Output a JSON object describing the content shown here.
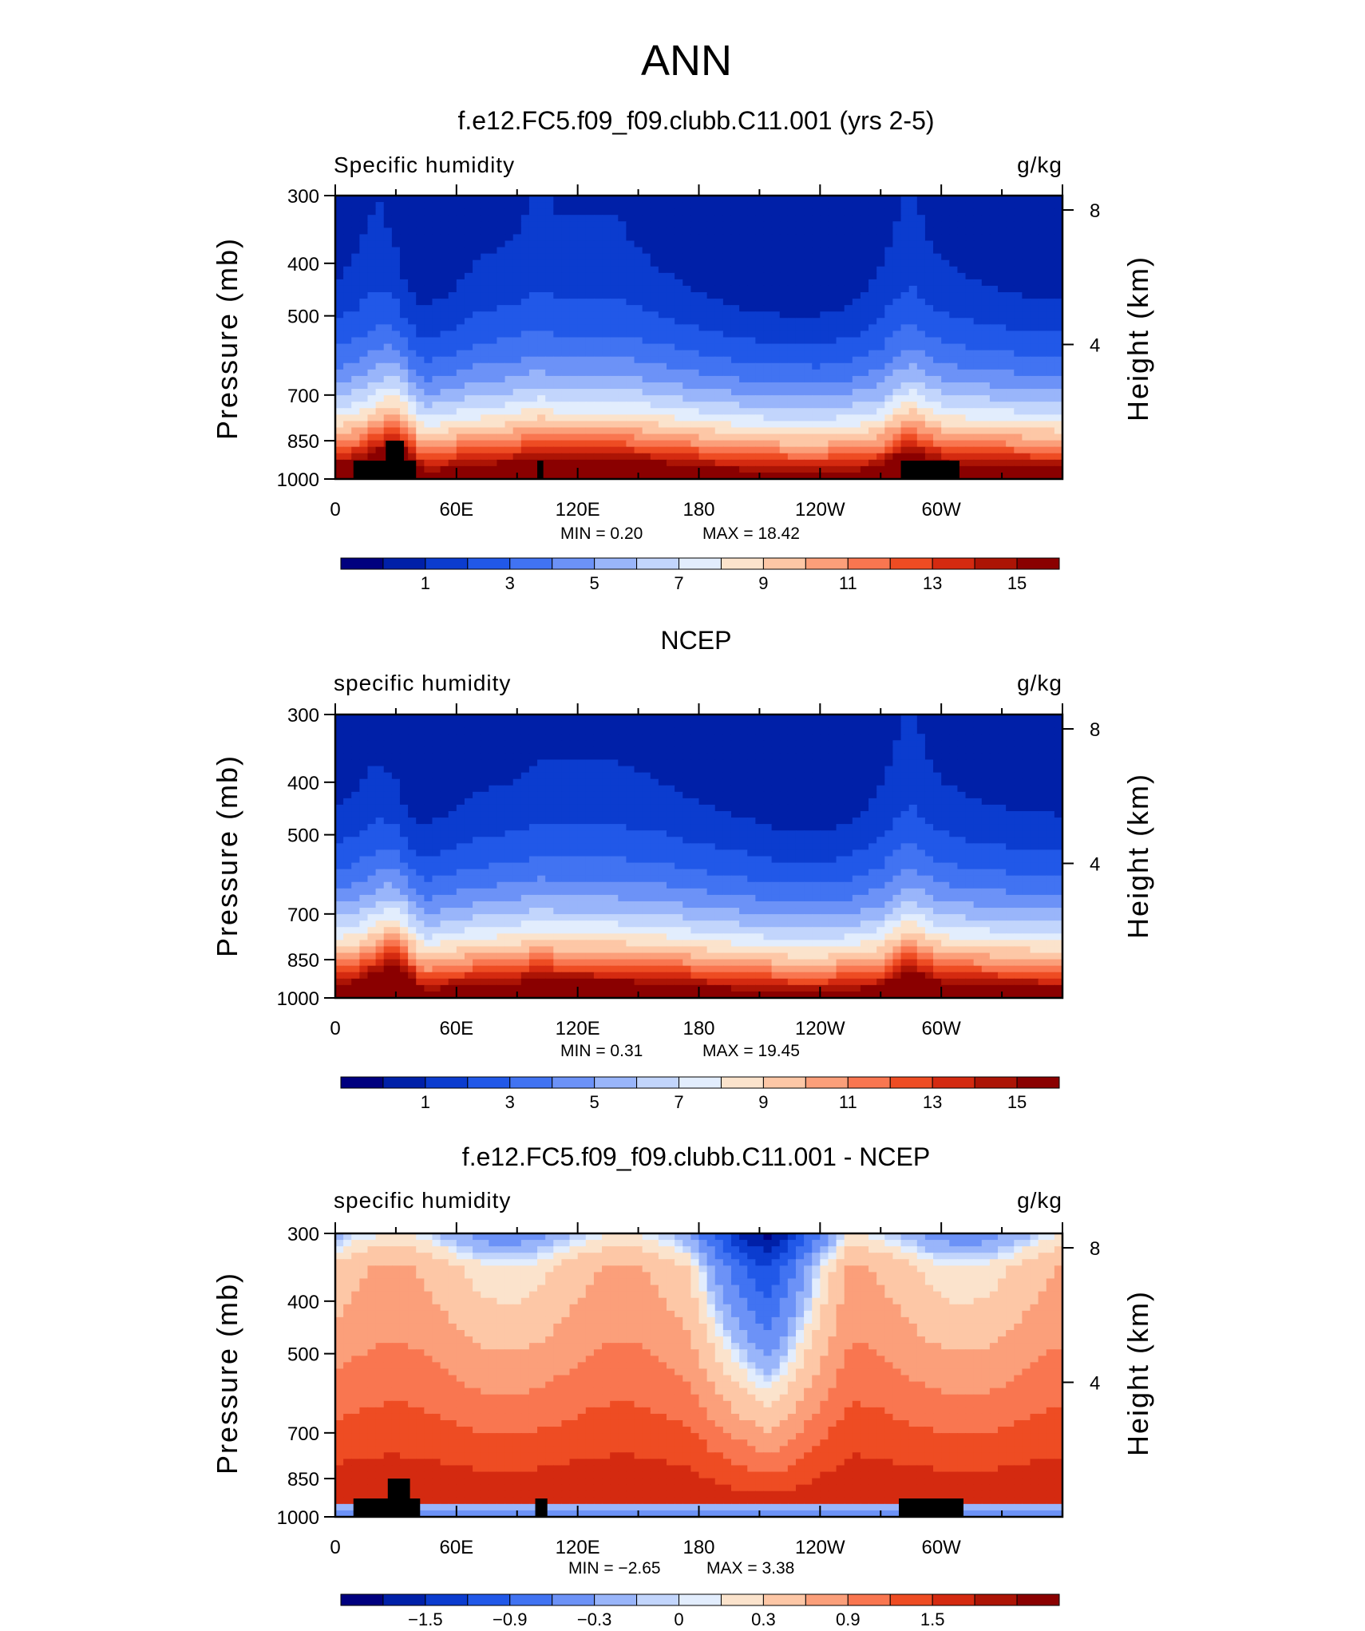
{
  "figure": {
    "title": "ANN"
  },
  "panels": [
    {
      "title": "f.e12.FC5.f09_f09.clubb.C11.001 (yrs 2-5)",
      "left_label": "Specific humidity",
      "right_label": "g/kg",
      "ylabel_left": "Pressure (mb)",
      "ylabel_right": "Height (km)",
      "min_text": "MIN =    0.20",
      "max_text": "MAX =   18.42"
    },
    {
      "title": "NCEP",
      "left_label": "specific humidity",
      "right_label": "g/kg",
      "ylabel_left": "Pressure (mb)",
      "ylabel_right": "Height (km)",
      "min_text": "MIN =    0.31",
      "max_text": "MAX =   19.45"
    },
    {
      "title": "f.e12.FC5.f09_f09.clubb.C11.001 - NCEP",
      "left_label": "specific humidity",
      "right_label": "g/kg",
      "ylabel_left": "Pressure (mb)",
      "ylabel_right": "Height (km)",
      "min_text": "MIN =   −2.65",
      "max_text": "MAX =    3.38"
    }
  ],
  "chart_data": [
    {
      "type": "heatmap",
      "title": "f.e12.FC5.f09_f09.clubb.C11.001 (yrs 2-5)",
      "field": "Specific humidity",
      "units": "g/kg",
      "x_ticks": [
        "0",
        "60E",
        "120E",
        "180",
        "120W",
        "60W"
      ],
      "x_tick_values": [
        0,
        60,
        120,
        180,
        240,
        300
      ],
      "xlim": [
        0,
        360
      ],
      "y_ticks": [
        "300",
        "400",
        "500",
        "700",
        "850",
        "1000"
      ],
      "y_tick_values": [
        300,
        400,
        500,
        700,
        850,
        1000
      ],
      "ylim": [
        1000,
        300
      ],
      "y_scale": "log",
      "y_right_ticks": [
        "8",
        "4"
      ],
      "y_right_tick_values": [
        8,
        4
      ],
      "min": 0.2,
      "max": 18.42,
      "colorbar_levels": [
        0,
        1,
        2,
        3,
        4,
        5,
        6,
        7,
        8,
        9,
        10,
        11,
        12,
        13,
        14,
        15,
        16
      ],
      "colorbar_tick_labels": [
        "1",
        "3",
        "5",
        "7",
        "9",
        "11",
        "13",
        "15"
      ],
      "colors": [
        "#00007f",
        "#0020a8",
        "#0b3ccf",
        "#2158e8",
        "#4173f2",
        "#6c92f7",
        "#99b5fa",
        "#c2d5fc",
        "#e2edfd",
        "#fbe3cc",
        "#fdc7a6",
        "#fb9f7a",
        "#f97650",
        "#ee4c23",
        "#d42a10",
        "#ac1405",
        "#8a0000"
      ],
      "profile_longitudes": [
        0,
        10,
        20,
        25,
        30,
        35,
        40,
        45,
        55,
        70,
        90,
        100,
        110,
        120,
        140,
        160,
        180,
        200,
        220,
        240,
        255,
        270,
        280,
        285,
        290,
        300,
        320,
        340,
        360
      ],
      "profile_surface_offset": [
        0.8,
        1.1,
        2.2,
        3.0,
        3.1,
        2.4,
        0.6,
        -0.2,
        0.3,
        0.6,
        1.0,
        1.6,
        1.2,
        1.2,
        1.2,
        0.9,
        0.4,
        0.1,
        -0.2,
        -0.3,
        0.0,
        0.4,
        2.0,
        2.5,
        1.8,
        0.9,
        0.6,
        0.4,
        0.3
      ],
      "profile_upper_offset": [
        -0.3,
        0.2,
        0.6,
        0.5,
        0.2,
        -0.5,
        -0.8,
        -0.8,
        -0.6,
        0.1,
        0.4,
        0.7,
        0.5,
        0.5,
        0.5,
        0.0,
        -0.5,
        -1.0,
        -1.2,
        -1.2,
        -0.9,
        0.0,
        0.6,
        0.7,
        0.5,
        0.1,
        -0.3,
        -0.6,
        -0.8
      ],
      "topography": [
        {
          "lon0": 9,
          "lon1": 40,
          "p_top": 925
        },
        {
          "lon0": 25,
          "lon1": 34,
          "p_top": 850
        },
        {
          "lon0": 100,
          "lon1": 103,
          "p_top": 925
        },
        {
          "lon0": 280,
          "lon1": 309,
          "p_top": 925
        }
      ]
    },
    {
      "type": "heatmap",
      "title": "NCEP",
      "field": "specific humidity",
      "units": "g/kg",
      "x_ticks": [
        "0",
        "60E",
        "120E",
        "180",
        "120W",
        "60W"
      ],
      "x_tick_values": [
        0,
        60,
        120,
        180,
        240,
        300
      ],
      "xlim": [
        0,
        360
      ],
      "y_ticks": [
        "300",
        "400",
        "500",
        "700",
        "850",
        "1000"
      ],
      "y_tick_values": [
        300,
        400,
        500,
        700,
        850,
        1000
      ],
      "ylim": [
        1000,
        300
      ],
      "y_scale": "log",
      "y_right_ticks": [
        "8",
        "4"
      ],
      "y_right_tick_values": [
        8,
        4
      ],
      "min": 0.31,
      "max": 19.45,
      "colorbar_levels": [
        0,
        1,
        2,
        3,
        4,
        5,
        6,
        7,
        8,
        9,
        10,
        11,
        12,
        13,
        14,
        15,
        16
      ],
      "colorbar_tick_labels": [
        "1",
        "3",
        "5",
        "7",
        "9",
        "11",
        "13",
        "15"
      ],
      "colors": [
        "#00007f",
        "#0020a8",
        "#0b3ccf",
        "#2158e8",
        "#4173f2",
        "#6c92f7",
        "#99b5fa",
        "#c2d5fc",
        "#e2edfd",
        "#fbe3cc",
        "#fdc7a6",
        "#fb9f7a",
        "#f97650",
        "#ee4c23",
        "#d42a10",
        "#ac1405",
        "#8a0000"
      ],
      "profile_longitudes": [
        0,
        10,
        20,
        25,
        30,
        35,
        40,
        45,
        55,
        70,
        90,
        100,
        110,
        120,
        140,
        160,
        180,
        200,
        220,
        240,
        255,
        270,
        280,
        285,
        290,
        300,
        320,
        340,
        360
      ],
      "profile_surface_offset": [
        0.6,
        0.9,
        2.0,
        2.8,
        2.9,
        2.2,
        0.5,
        -0.3,
        0.2,
        0.5,
        0.8,
        1.3,
        1.0,
        1.0,
        0.9,
        0.7,
        0.3,
        0.0,
        -0.3,
        -0.4,
        -0.1,
        0.3,
        1.8,
        2.3,
        1.6,
        0.7,
        0.4,
        0.3,
        0.2
      ],
      "profile_upper_offset": [
        -0.4,
        -0.1,
        0.3,
        0.2,
        0.0,
        -0.6,
        -0.9,
        -0.8,
        -0.6,
        -0.1,
        0.1,
        0.3,
        0.3,
        0.3,
        0.3,
        0.1,
        -0.3,
        -0.6,
        -1.0,
        -1.1,
        -0.8,
        0.0,
        0.6,
        0.7,
        0.5,
        0.1,
        -0.3,
        -0.5,
        -0.6
      ],
      "topography": []
    },
    {
      "type": "heatmap",
      "title": "f.e12.FC5.f09_f09.clubb.C11.001 - NCEP",
      "field": "specific humidity",
      "units": "g/kg",
      "x_ticks": [
        "0",
        "60E",
        "120E",
        "180",
        "120W",
        "60W"
      ],
      "x_tick_values": [
        0,
        60,
        120,
        180,
        240,
        300
      ],
      "xlim": [
        0,
        360
      ],
      "y_ticks": [
        "300",
        "400",
        "500",
        "700",
        "850",
        "1000"
      ],
      "y_tick_values": [
        300,
        400,
        500,
        700,
        850,
        1000
      ],
      "ylim": [
        1000,
        300
      ],
      "y_scale": "log",
      "y_right_ticks": [
        "8",
        "4"
      ],
      "y_right_tick_values": [
        8,
        4
      ],
      "min": -2.65,
      "max": 3.38,
      "colorbar_levels": [
        -1.8,
        -1.5,
        -1.2,
        -0.9,
        -0.6,
        -0.3,
        -0.1,
        0,
        0.1,
        0.3,
        0.6,
        0.9,
        1.2,
        1.5,
        1.8
      ],
      "colorbar_tick_labels": [
        "−1.5",
        "−0.9",
        "−0.3",
        "0",
        "0.3",
        "0.9",
        "1.5"
      ],
      "colorbar_tick_values": [
        -1.5,
        -0.9,
        -0.3,
        0,
        0.3,
        0.9,
        1.5
      ],
      "colors": [
        "#00007f",
        "#0020a8",
        "#0b3ccf",
        "#2158e8",
        "#4173f2",
        "#6c92f7",
        "#99b5fa",
        "#c2d5fc",
        "#e2edfd",
        "#fbe3cc",
        "#fdc7a6",
        "#fb9f7a",
        "#f97650",
        "#ee4c23",
        "#d42a10",
        "#ac1405",
        "#8a0000"
      ],
      "neg_region_lon": [
        175,
        255
      ],
      "topography": [
        {
          "lon0": 9,
          "lon1": 42,
          "p_top": 925
        },
        {
          "lon0": 26,
          "lon1": 37,
          "p_top": 850
        },
        {
          "lon0": 99,
          "lon1": 105,
          "p_top": 925
        },
        {
          "lon0": 279,
          "lon1": 311,
          "p_top": 925
        }
      ]
    }
  ]
}
